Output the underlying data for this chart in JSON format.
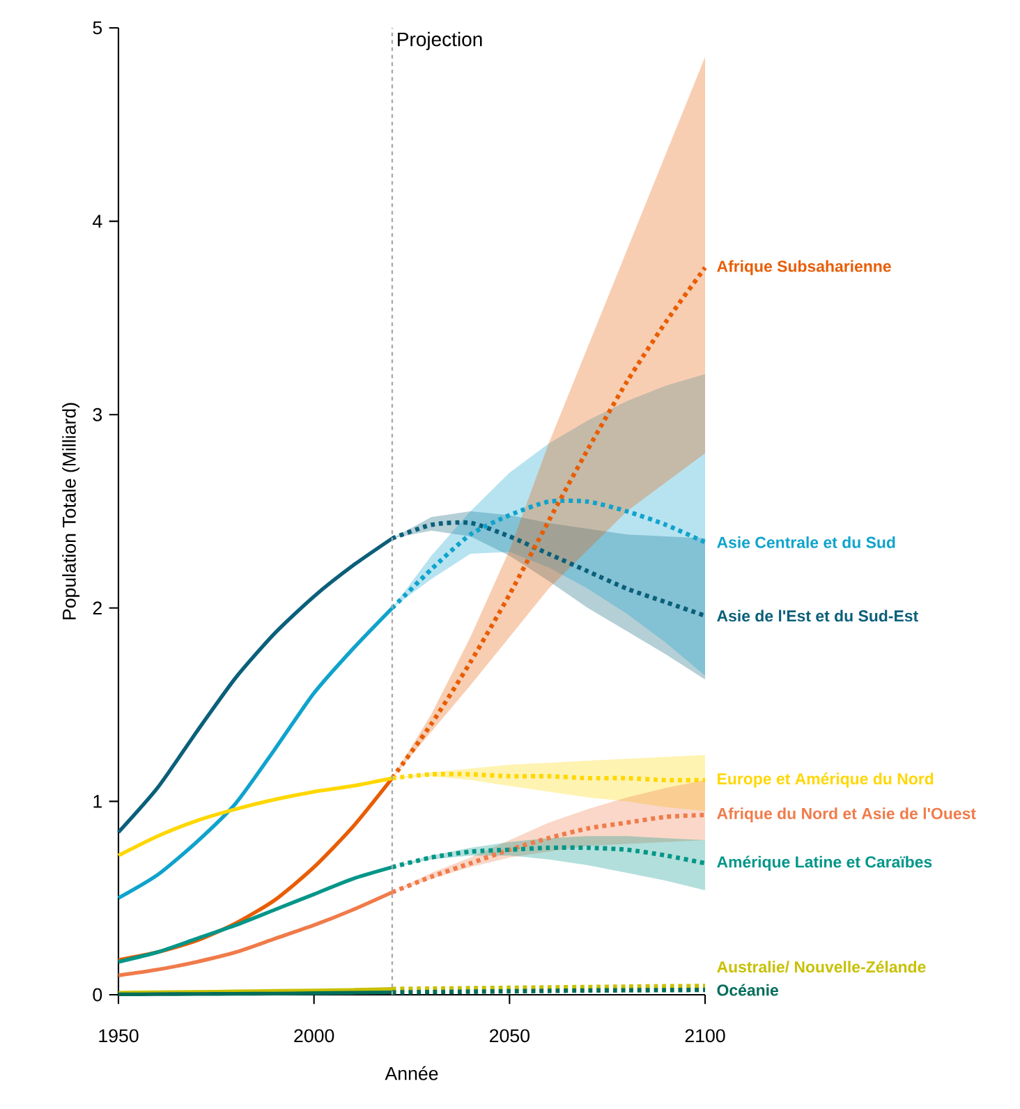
{
  "chart_data": {
    "type": "line",
    "xlabel": "Année",
    "ylabel": "Population Totale (Milliard)",
    "xlim": [
      1950,
      2100
    ],
    "ylim": [
      0,
      5
    ],
    "xticks": [
      1950,
      2000,
      2050,
      2100
    ],
    "yticks": [
      0,
      1,
      2,
      3,
      4,
      5
    ],
    "ref_lines": [
      {
        "axis": "x",
        "value": 2020,
        "label": "Projection",
        "color": "#aaaaaa",
        "line_style": "dashed"
      }
    ],
    "series": [
      {
        "color": "#0b5f7a",
        "line_style": "solid",
        "x": [
          1950,
          1960,
          1970,
          1980,
          1990,
          2000,
          2010,
          2020
        ],
        "values": [
          0.84,
          1.07,
          1.36,
          1.64,
          1.87,
          2.06,
          2.22,
          2.36
        ]
      },
      {
        "name": "Asie de l'Est et du Sud-Est",
        "color": "#0b5f7a",
        "line_style": "dotted",
        "x": [
          2020,
          2030,
          2040,
          2050,
          2060,
          2070,
          2080,
          2090,
          2100
        ],
        "values": [
          2.36,
          2.43,
          2.44,
          2.37,
          2.28,
          2.19,
          2.1,
          2.03,
          1.96
        ],
        "lower": [
          2.36,
          2.4,
          2.37,
          2.27,
          2.14,
          2.0,
          1.88,
          1.76,
          1.63
        ],
        "upper": [
          2.36,
          2.47,
          2.5,
          2.48,
          2.44,
          2.41,
          2.38,
          2.37,
          2.36
        ]
      },
      {
        "color": "#0fa3cc",
        "line_style": "solid",
        "x": [
          1950,
          1960,
          1970,
          1980,
          1990,
          2000,
          2010,
          2020
        ],
        "values": [
          0.5,
          0.62,
          0.79,
          0.99,
          1.27,
          1.56,
          1.79,
          2.0
        ]
      },
      {
        "name": "Asie Centrale et du Sud",
        "color": "#0fa3cc",
        "line_style": "dotted",
        "x": [
          2020,
          2030,
          2040,
          2050,
          2060,
          2070,
          2080,
          2090,
          2100
        ],
        "values": [
          2.0,
          2.2,
          2.38,
          2.48,
          2.55,
          2.55,
          2.5,
          2.43,
          2.34
        ],
        "lower": [
          2.0,
          2.15,
          2.28,
          2.29,
          2.21,
          2.1,
          1.97,
          1.82,
          1.65
        ],
        "upper": [
          2.0,
          2.27,
          2.5,
          2.7,
          2.85,
          2.97,
          3.07,
          3.15,
          3.21
        ]
      },
      {
        "color": "#e85d04",
        "line_style": "solid",
        "x": [
          1950,
          1960,
          1970,
          1980,
          1990,
          2000,
          2010,
          2020
        ],
        "values": [
          0.18,
          0.22,
          0.28,
          0.37,
          0.49,
          0.66,
          0.87,
          1.12
        ]
      },
      {
        "name": "Afrique Subsaharienne",
        "color": "#e85d04",
        "line_style": "dotted",
        "x": [
          2020,
          2030,
          2040,
          2050,
          2060,
          2070,
          2080,
          2090,
          2100
        ],
        "values": [
          1.12,
          1.4,
          1.72,
          2.07,
          2.45,
          2.82,
          3.17,
          3.48,
          3.76
        ],
        "lower": [
          1.12,
          1.36,
          1.6,
          1.85,
          2.1,
          2.3,
          2.5,
          2.65,
          2.8
        ],
        "upper": [
          1.12,
          1.45,
          1.85,
          2.3,
          2.85,
          3.35,
          3.85,
          4.35,
          4.85
        ]
      },
      {
        "color": "#ffd700",
        "line_style": "solid",
        "x": [
          1950,
          1960,
          1970,
          1980,
          1990,
          2000,
          2010,
          2020
        ],
        "values": [
          0.72,
          0.82,
          0.9,
          0.96,
          1.01,
          1.05,
          1.08,
          1.12
        ]
      },
      {
        "name": "Europe et Amérique du Nord",
        "color": "#ffd700",
        "line_style": "dotted",
        "x": [
          2020,
          2030,
          2040,
          2050,
          2060,
          2070,
          2080,
          2090,
          2100
        ],
        "values": [
          1.12,
          1.14,
          1.14,
          1.13,
          1.13,
          1.12,
          1.12,
          1.11,
          1.11
        ],
        "lower": [
          1.12,
          1.13,
          1.11,
          1.08,
          1.05,
          1.02,
          1.0,
          0.97,
          0.95
        ],
        "upper": [
          1.12,
          1.15,
          1.17,
          1.19,
          1.2,
          1.21,
          1.22,
          1.23,
          1.24
        ]
      },
      {
        "color": "#f07b4a",
        "line_style": "solid",
        "x": [
          1950,
          1960,
          1970,
          1980,
          1990,
          2000,
          2010,
          2020
        ],
        "values": [
          0.1,
          0.13,
          0.17,
          0.22,
          0.29,
          0.36,
          0.44,
          0.53
        ]
      },
      {
        "name": "Afrique du Nord et Asie de l'Ouest",
        "color": "#f07b4a",
        "line_style": "dotted",
        "x": [
          2020,
          2030,
          2040,
          2050,
          2060,
          2070,
          2080,
          2090,
          2100
        ],
        "values": [
          0.53,
          0.61,
          0.68,
          0.75,
          0.81,
          0.86,
          0.89,
          0.92,
          0.93
        ],
        "lower": [
          0.53,
          0.6,
          0.66,
          0.71,
          0.74,
          0.77,
          0.78,
          0.79,
          0.8
        ],
        "upper": [
          0.53,
          0.63,
          0.71,
          0.8,
          0.89,
          0.96,
          1.02,
          1.07,
          1.11
        ]
      },
      {
        "color": "#009688",
        "line_style": "solid",
        "x": [
          1950,
          1960,
          1970,
          1980,
          1990,
          2000,
          2010,
          2020
        ],
        "values": [
          0.17,
          0.22,
          0.29,
          0.36,
          0.44,
          0.52,
          0.6,
          0.66
        ]
      },
      {
        "name": "Amérique Latine et Caraïbes",
        "color": "#009688",
        "line_style": "dotted",
        "x": [
          2020,
          2030,
          2040,
          2050,
          2060,
          2070,
          2080,
          2090,
          2100
        ],
        "values": [
          0.66,
          0.71,
          0.74,
          0.75,
          0.76,
          0.76,
          0.75,
          0.72,
          0.68
        ],
        "lower": [
          0.66,
          0.7,
          0.72,
          0.72,
          0.7,
          0.67,
          0.63,
          0.59,
          0.54
        ],
        "upper": [
          0.66,
          0.72,
          0.76,
          0.79,
          0.81,
          0.82,
          0.82,
          0.81,
          0.8
        ]
      },
      {
        "color": "#c8c000",
        "line_style": "solid",
        "x": [
          1950,
          1960,
          1970,
          1980,
          1990,
          2000,
          2010,
          2020
        ],
        "values": [
          0.01,
          0.013,
          0.015,
          0.017,
          0.02,
          0.022,
          0.025,
          0.03
        ]
      },
      {
        "name": "Australie/ Nouvelle-Zélande",
        "color": "#c8c000",
        "line_style": "dotted",
        "x": [
          2020,
          2030,
          2040,
          2050,
          2060,
          2070,
          2080,
          2090,
          2100
        ],
        "values": [
          0.03,
          0.032,
          0.034,
          0.036,
          0.038,
          0.04,
          0.042,
          0.044,
          0.045
        ]
      },
      {
        "color": "#006d5b",
        "line_style": "solid",
        "x": [
          1950,
          1960,
          1970,
          1980,
          1990,
          2000,
          2010,
          2020
        ],
        "values": [
          0.002,
          0.003,
          0.004,
          0.005,
          0.006,
          0.008,
          0.01,
          0.012
        ]
      },
      {
        "name": "Océanie",
        "color": "#006d5b",
        "line_style": "dotted",
        "x": [
          2020,
          2030,
          2040,
          2050,
          2060,
          2070,
          2080,
          2090,
          2100
        ],
        "values": [
          0.012,
          0.014,
          0.016,
          0.018,
          0.02,
          0.022,
          0.023,
          0.024,
          0.025
        ]
      }
    ]
  }
}
